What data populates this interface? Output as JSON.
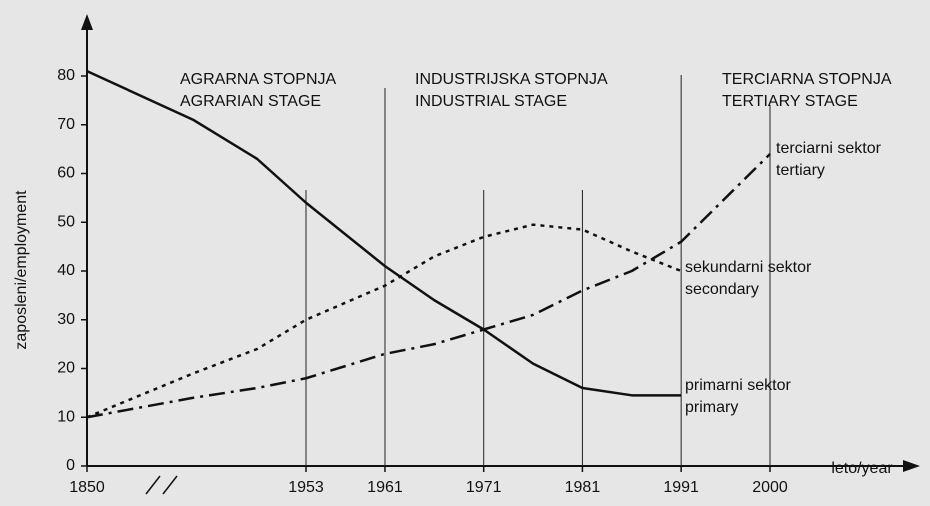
{
  "chart_data": {
    "type": "line",
    "y_label": "zaposleni/employment",
    "x_label": "leto/year",
    "x": [
      1850,
      1900,
      1930,
      1953,
      1961,
      1966,
      1971,
      1976,
      1981,
      1986,
      1991,
      2000
    ],
    "series": [
      {
        "name": "primarni sektor",
        "name_en": "primary",
        "color": "#111111",
        "dash": "solid",
        "values": [
          81,
          71,
          63,
          54,
          41,
          34,
          28,
          21,
          16,
          14.5,
          14.5,
          null
        ]
      },
      {
        "name": "sekundarni sektor",
        "name_en": "secondary",
        "color": "#111111",
        "dash": "dot",
        "values": [
          10,
          19,
          24,
          30,
          37,
          43,
          47,
          49.5,
          48.5,
          44,
          40,
          null
        ]
      },
      {
        "name": "terciarni sektor",
        "name_en": "tertiary",
        "color": "#111111",
        "dash": "dashdot",
        "values": [
          10,
          14,
          16,
          18,
          23,
          25,
          28,
          31,
          36,
          40,
          46,
          64
        ]
      }
    ],
    "stages": [
      {
        "name": "AGRARNA STOPNJA",
        "name_en": "AGRARIAN STAGE"
      },
      {
        "name": "INDUSTRIJSKA STOPNJA",
        "name_en": "INDUSTRIAL STAGE"
      },
      {
        "name": "TERCIARNA STOPNJA",
        "name_en": "TERTIARY STAGE"
      }
    ],
    "xlim": [
      1850,
      2000
    ],
    "xticks": [
      1850,
      1953,
      1961,
      1971,
      1981,
      1991,
      2000
    ],
    "x_axis_break": true,
    "ylim": [
      0,
      80
    ],
    "yticks": [
      0,
      10,
      20,
      30,
      40,
      50,
      60,
      70,
      80
    ]
  }
}
